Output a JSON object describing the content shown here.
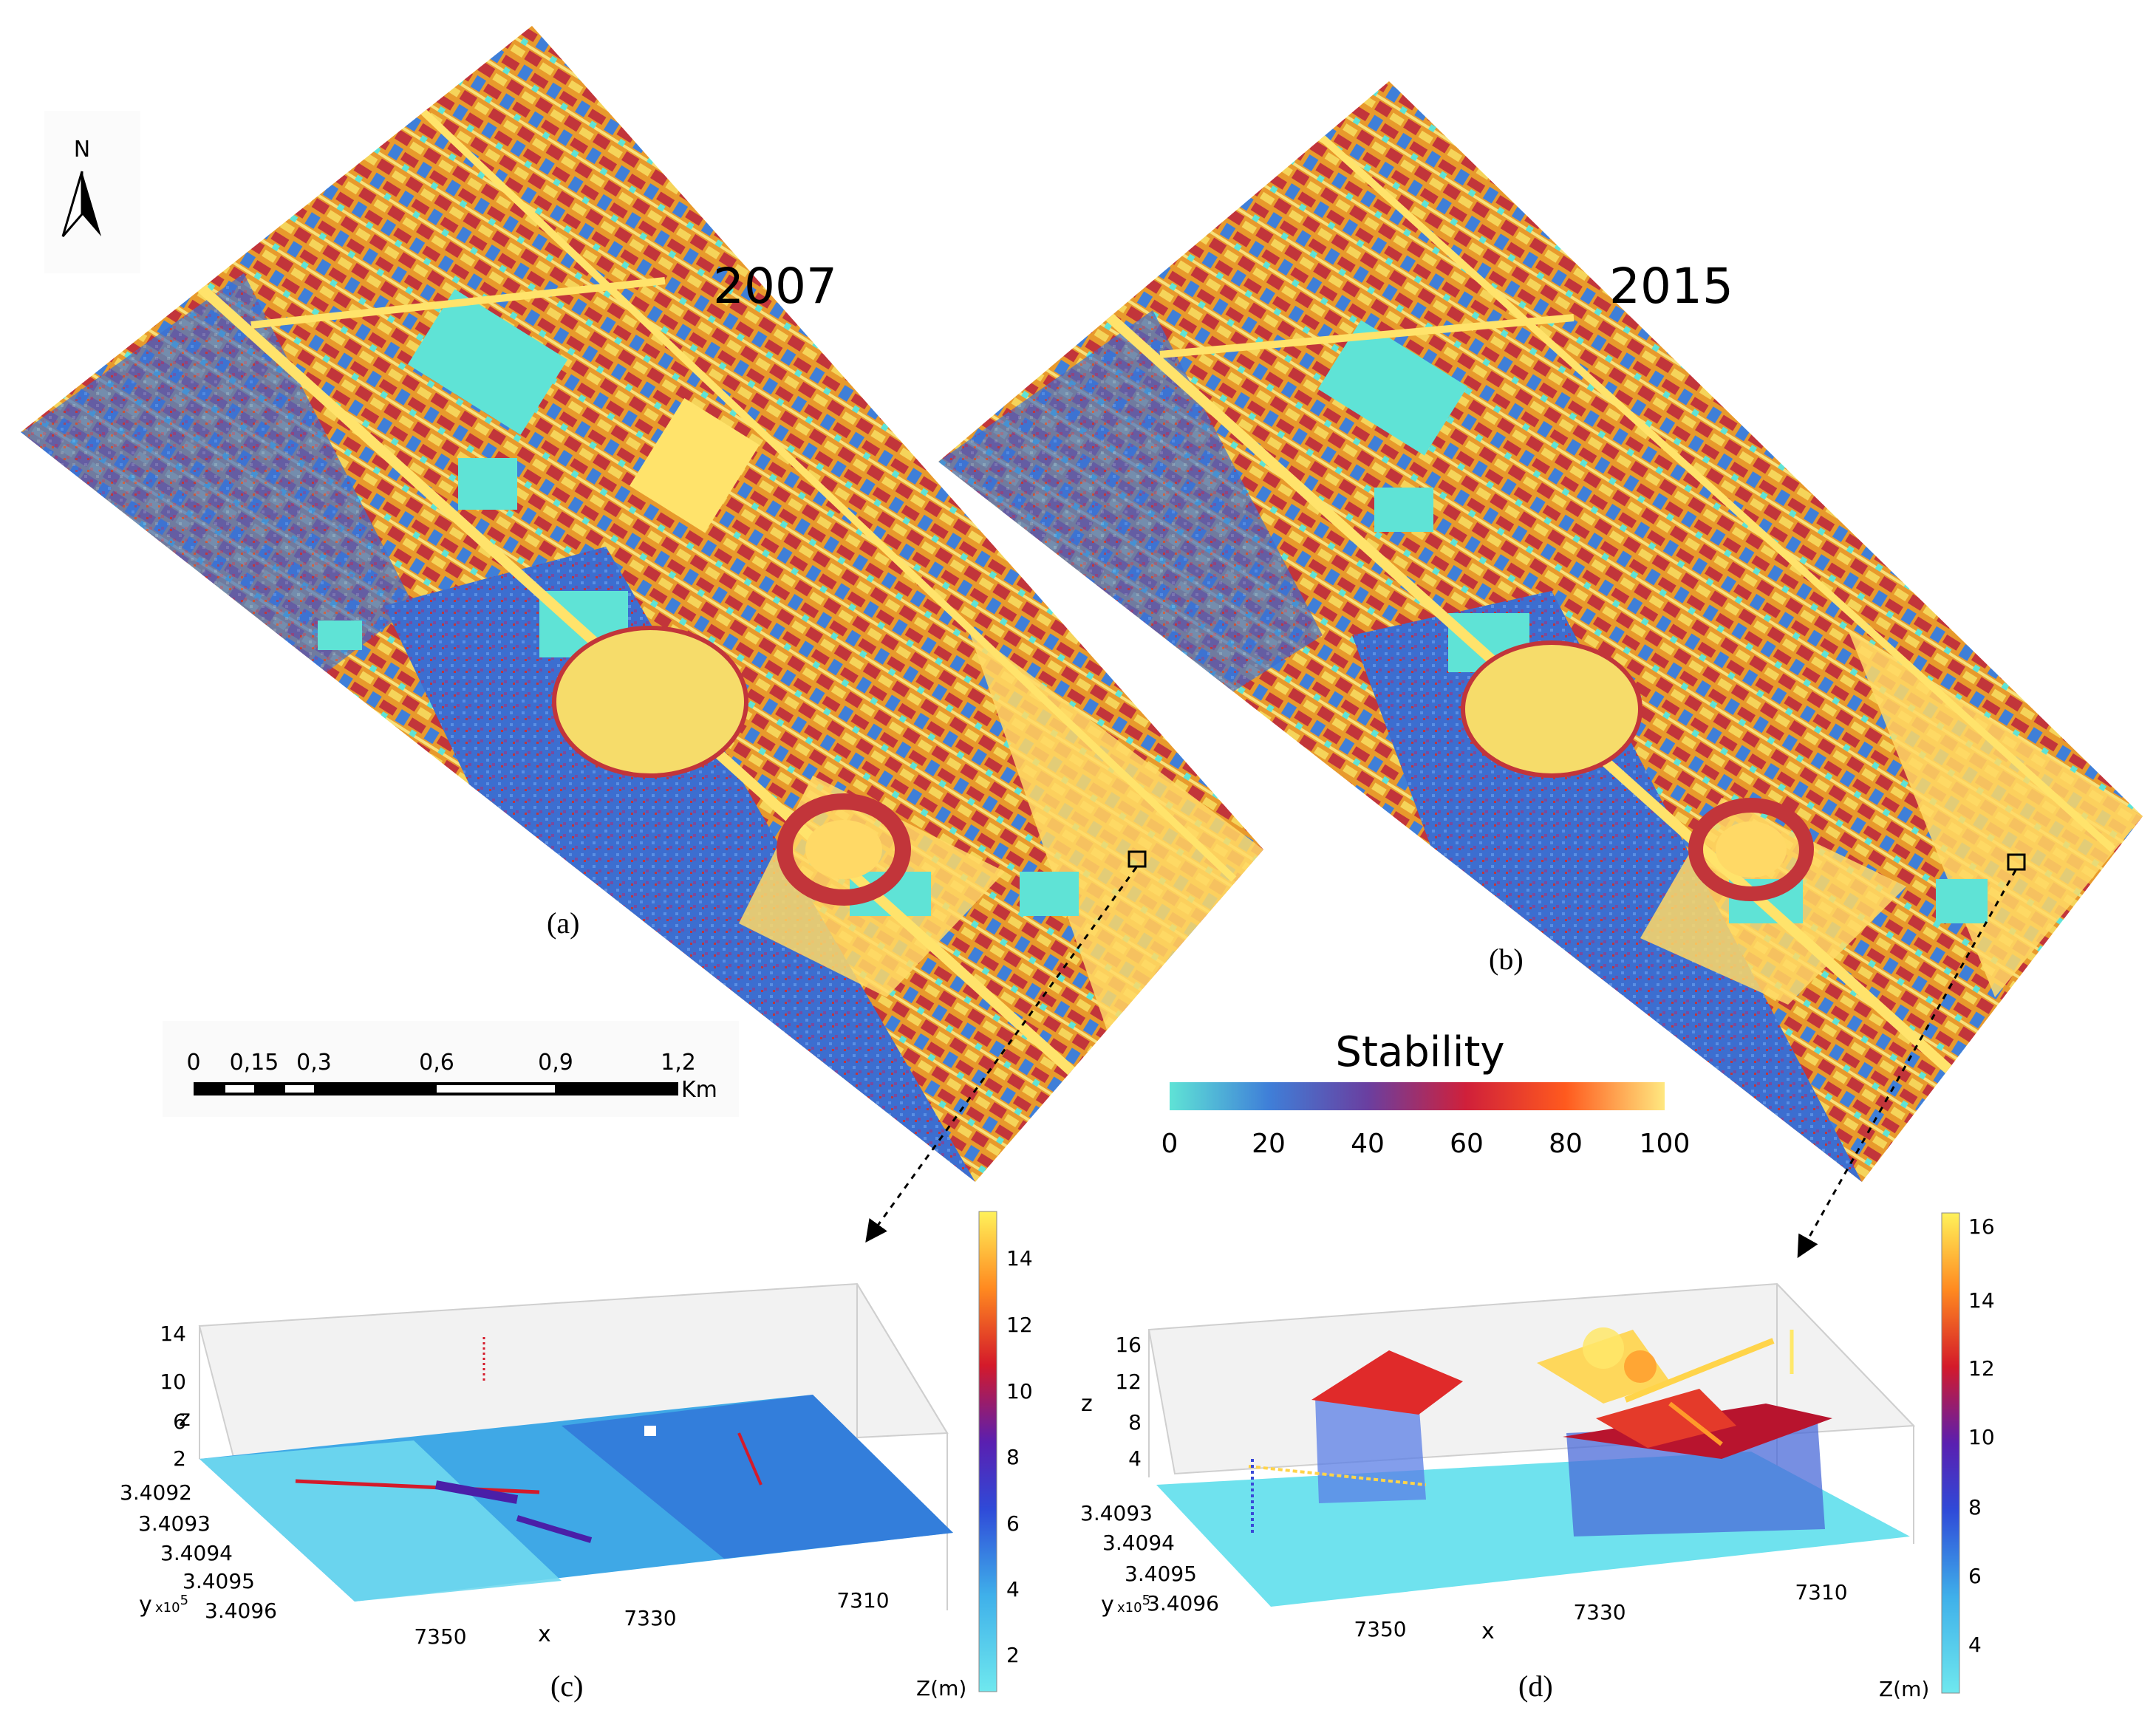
{
  "north_arrow": {
    "label": "N"
  },
  "maps": [
    {
      "year": "2007",
      "panel": "(a)"
    },
    {
      "year": "2015",
      "panel": "(b)"
    }
  ],
  "scale_bar": {
    "ticks": [
      "0",
      "0,15",
      "0,3",
      "0,6",
      "0,9",
      "1,2"
    ],
    "unit": "Km"
  },
  "stability_legend": {
    "title": "Stability",
    "ticks": [
      "0",
      "20",
      "40",
      "60",
      "80",
      "100"
    ],
    "colors": [
      "#5fe3d6",
      "#3f7fd8",
      "#6a3fa0",
      "#d0203a",
      "#ff5a1e",
      "#ffe880"
    ]
  },
  "plots": [
    {
      "panel": "(c)",
      "z_label": "z",
      "z_ticks": [
        "14",
        "10",
        "6",
        "2"
      ],
      "y_label": "y",
      "y_exp": "x10",
      "y_exp_sup": "5",
      "y_ticks": [
        "3.4092",
        "3.4093",
        "3.4094",
        "3.4095",
        "3.4096"
      ],
      "x_label": "x",
      "x_ticks": [
        "7350",
        "7330",
        "7310"
      ],
      "colorbar_ticks": [
        "14",
        "12",
        "10",
        "8",
        "6",
        "4",
        "2"
      ],
      "colorbar_label": "Z(m)"
    },
    {
      "panel": "(d)",
      "z_label": "z",
      "z_ticks": [
        "16",
        "12",
        "8",
        "4"
      ],
      "y_label": "y",
      "y_exp": "x10",
      "y_exp_sup": "5",
      "y_ticks": [
        "3.4093",
        "3.4094",
        "3.4095",
        "3.4096"
      ],
      "x_label": "x",
      "x_ticks": [
        "7350",
        "7330",
        "7310"
      ],
      "colorbar_ticks": [
        "16",
        "14",
        "12",
        "10",
        "8",
        "6",
        "4"
      ],
      "colorbar_label": "Z(m)"
    }
  ]
}
